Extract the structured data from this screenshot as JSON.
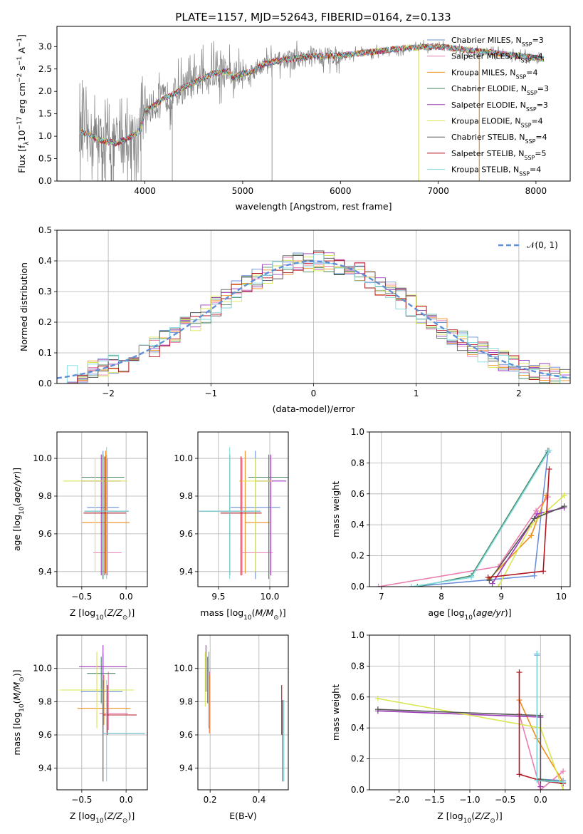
{
  "title": "PLATE=1157, MJD=52643, FIBERID=0164, z=0.133",
  "legend_spectrum": [
    {
      "label": "Chabrier MILES, N_SSP=3",
      "color": "#6a8fd8"
    },
    {
      "label": "Salpeter MILES, N_SSP=4",
      "color": "#e87fb0"
    },
    {
      "label": "Kroupa MILES, N_SSP=4",
      "color": "#ef8e1f"
    },
    {
      "label": "Chabrier ELODIE, N_SSP=3",
      "color": "#4b8a63"
    },
    {
      "label": "Salpeter ELODIE, N_SSP=3",
      "color": "#9b39b8"
    },
    {
      "label": "Kroupa ELODIE, N_SSP=4",
      "color": "#d9e64f"
    },
    {
      "label": "Chabrier STELIB, N_SSP=4",
      "color": "#555555"
    },
    {
      "label": "Salpeter STELIB, N_SSP=5",
      "color": "#b3141e"
    },
    {
      "label": "Kroupa STELIB, N_SSP=4",
      "color": "#7fd9e0"
    }
  ],
  "labels": {
    "spec_x": "wavelength [Angstrom, rest frame]",
    "spec_y": "Flux [f_λ 10^-17 erg cm^-2 s^-1 A^-1]",
    "hist_x": "(data-model)/error",
    "hist_y": "Normed distribution",
    "hist_legend": "𝒩(0, 1)",
    "age_y": "age  [log10(age/yr)]",
    "z_x": "Z [log10(Z/Z⊙)]",
    "mass_x": "mass [log10(M/M⊙)]",
    "mass_y": "mass [log10(M/M⊙)]",
    "ebv_x": "E(B-V)",
    "mw_y": "mass weight",
    "age_x": "age  [log10(age/yr)]"
  },
  "chart_data": [
    {
      "type": "line",
      "panel": "spectrum",
      "xlim": [
        3100,
        8350
      ],
      "ylim": [
        0,
        3.45
      ],
      "x_ticks": [
        4000,
        5000,
        6000,
        7000,
        8000
      ],
      "y_ticks": [
        0.0,
        0.5,
        1.0,
        1.5,
        2.0,
        2.5,
        3.0
      ],
      "y_tick_labels": [
        "0.0",
        "0.5",
        "1.0",
        "1.5",
        "2.0",
        "2.5",
        "3.0"
      ],
      "continuum_x": [
        3330,
        3420,
        3500,
        3600,
        3700,
        3800,
        3900,
        3950,
        4000,
        4100,
        4200,
        4300,
        4400,
        4500,
        4700,
        4860,
        4900,
        5000,
        5100,
        5200,
        5400,
        5600,
        5800,
        6000,
        6200,
        6400,
        6600,
        6800,
        7000,
        7200,
        7400,
        7600,
        7800,
        8000,
        8080
      ],
      "continuum_y": [
        1.1,
        1.05,
        0.95,
        0.88,
        0.85,
        0.92,
        1.05,
        1.15,
        1.55,
        1.7,
        1.85,
        1.95,
        2.1,
        2.2,
        2.4,
        2.45,
        2.3,
        2.4,
        2.45,
        2.6,
        2.7,
        2.75,
        2.8,
        2.8,
        2.85,
        2.9,
        2.95,
        2.98,
        3.0,
        2.95,
        2.9,
        2.85,
        2.8,
        2.75,
        2.72
      ],
      "grid": false
    },
    {
      "type": "histogram",
      "panel": "residuals",
      "xlim": [
        -2.5,
        2.5
      ],
      "ylim": [
        0,
        0.5
      ],
      "x_ticks": [
        -2,
        -1,
        0,
        1,
        2
      ],
      "x_tick_labels": [
        "−2",
        "−1",
        "0",
        "1",
        "2"
      ],
      "y_ticks": [
        0.0,
        0.1,
        0.2,
        0.3,
        0.4,
        0.5
      ],
      "y_tick_labels": [
        "0.0",
        "0.1",
        "0.2",
        "0.3",
        "0.4",
        "0.5"
      ],
      "bin_width": 0.1,
      "bin_start": -2.5,
      "gaussian": {
        "mu": 0,
        "sigma": 1,
        "label": "𝒩(0, 1)"
      },
      "grid": true
    },
    {
      "type": "scatter",
      "panel": "Z vs age",
      "xlim": [
        -0.78,
        0.24
      ],
      "ylim": [
        9.32,
        10.14
      ],
      "x_ticks": [
        -0.5,
        0.0
      ],
      "x_tick_labels": [
        "−0.5",
        "0.0"
      ],
      "y_ticks": [
        9.4,
        9.6,
        9.8,
        10.0
      ],
      "y_tick_labels": [
        "9.4",
        "9.6",
        "9.8",
        "10.0"
      ],
      "points": [
        {
          "x": -0.26,
          "y": 9.74,
          "xerr": [
            0.18,
            0.18
          ],
          "yerr": [
            0.38,
            0.3
          ],
          "color": "#6a8fd8"
        },
        {
          "x": -0.21,
          "y": 9.5,
          "xerr": [
            0.16,
            0.16
          ],
          "yerr": [
            0.12,
            0.5
          ],
          "color": "#e87fb0"
        },
        {
          "x": -0.23,
          "y": 9.66,
          "xerr": [
            0.27,
            0.27
          ],
          "yerr": [
            0.27,
            0.38
          ],
          "color": "#ef8e1f"
        },
        {
          "x": -0.26,
          "y": 9.9,
          "xerr": [
            0.24,
            0.24
          ],
          "yerr": [
            0.54,
            0.12
          ],
          "color": "#4b8a63"
        },
        {
          "x": -0.28,
          "y": 9.88,
          "xerr": [
            0.22,
            0.22
          ],
          "yerr": [
            0.5,
            0.14
          ],
          "color": "#9b39b8"
        },
        {
          "x": -0.35,
          "y": 9.88,
          "xerr": [
            0.36,
            0.36
          ],
          "yerr": [
            0.48,
            0.12
          ],
          "color": "#d9e64f"
        },
        {
          "x": -0.22,
          "y": 9.72,
          "xerr": [
            0.25,
            0.25
          ],
          "yerr": [
            0.34,
            0.3
          ],
          "color": "#555555"
        },
        {
          "x": -0.24,
          "y": 9.71,
          "xerr": [
            0.24,
            0.24
          ],
          "yerr": [
            0.33,
            0.3
          ],
          "color": "#b3141e"
        },
        {
          "x": -0.22,
          "y": 9.72,
          "xerr": [
            0.25,
            0.25
          ],
          "yerr": [
            0.36,
            0.34
          ],
          "color": "#7fd9e0"
        }
      ],
      "grid": true
    },
    {
      "type": "scatter",
      "panel": "mass vs age",
      "xlim": [
        9.3,
        10.18
      ],
      "ylim": [
        9.32,
        10.14
      ],
      "x_ticks": [
        9.5,
        10.0
      ],
      "x_tick_labels": [
        "9.5",
        "10.0"
      ],
      "y_ticks": [
        9.4,
        9.6,
        9.8,
        10.0
      ],
      "y_tick_labels": [
        "9.4",
        "9.6",
        "9.8",
        "10.0"
      ],
      "points": [
        {
          "x": 9.86,
          "y": 9.74,
          "xerr": [
            0.24,
            0.24
          ],
          "yerr": [
            0.38,
            0.3
          ],
          "color": "#6a8fd8"
        },
        {
          "x": 9.73,
          "y": 9.5,
          "xerr": [
            0.0,
            0.3
          ],
          "yerr": [
            0.12,
            0.5
          ],
          "color": "#e87fb0"
        },
        {
          "x": 9.76,
          "y": 9.66,
          "xerr": [
            0.0,
            0.24
          ],
          "yerr": [
            0.27,
            0.38
          ],
          "color": "#ef8e1f"
        },
        {
          "x": 9.99,
          "y": 9.9,
          "xerr": [
            0.2,
            0.2
          ],
          "yerr": [
            0.54,
            0.12
          ],
          "color": "#4b8a63"
        },
        {
          "x": 10.01,
          "y": 9.88,
          "xerr": [
            0.15,
            0.15
          ],
          "yerr": [
            0.5,
            0.14
          ],
          "color": "#9b39b8"
        },
        {
          "x": 9.86,
          "y": 9.88,
          "xerr": [
            0.16,
            0.16
          ],
          "yerr": [
            0.48,
            0.12
          ],
          "color": "#d9e64f"
        },
        {
          "x": 9.61,
          "y": 9.72,
          "xerr": [
            0.3,
            0.3
          ],
          "yerr": [
            0.34,
            0.3
          ],
          "color": "#555555"
        },
        {
          "x": 9.72,
          "y": 9.71,
          "xerr": [
            0.2,
            0.2
          ],
          "yerr": [
            0.33,
            0.3
          ],
          "color": "#b3141e"
        },
        {
          "x": 9.61,
          "y": 9.72,
          "xerr": [
            0.3,
            0.3
          ],
          "yerr": [
            0.36,
            0.34
          ],
          "color": "#7fd9e0"
        }
      ],
      "grid": true
    },
    {
      "type": "line",
      "panel": "age vs mass weight",
      "xlim": [
        6.8,
        10.15
      ],
      "ylim": [
        0,
        1.0
      ],
      "x_ticks": [
        7,
        8,
        9,
        10
      ],
      "y_ticks": [
        0.0,
        0.2,
        0.4,
        0.6,
        0.8,
        1.0
      ],
      "y_tick_labels": [
        "0.0",
        "0.2",
        "0.4",
        "0.6",
        "0.8",
        "1.0"
      ],
      "series": [
        {
          "color": "#6a8fd8",
          "x": [
            7.5,
            9.55,
            9.78
          ],
          "y": [
            0.0,
            0.07,
            0.87
          ]
        },
        {
          "color": "#e87fb0",
          "x": [
            6.95,
            8.95,
            9.58,
            9.78
          ],
          "y": [
            0.0,
            0.13,
            0.49,
            0.58
          ]
        },
        {
          "color": "#ef8e1f",
          "x": [
            8.8,
            9.5,
            9.75
          ],
          "y": [
            0.05,
            0.33,
            0.59
          ]
        },
        {
          "color": "#4b8a63",
          "x": [
            7.6,
            8.5,
            9.78
          ],
          "y": [
            0.0,
            0.07,
            0.88
          ]
        },
        {
          "color": "#9b39b8",
          "x": [
            8.85,
            9.6,
            10.05
          ],
          "y": [
            0.02,
            0.47,
            0.51
          ]
        },
        {
          "color": "#d9e64f",
          "x": [
            8.95,
            9.5,
            10.05
          ],
          "y": [
            0.0,
            0.4,
            0.59
          ]
        },
        {
          "color": "#555555",
          "x": [
            8.8,
            9.55,
            10.05
          ],
          "y": [
            0.04,
            0.44,
            0.52
          ]
        },
        {
          "color": "#b3141e",
          "x": [
            8.78,
            9.7,
            9.8
          ],
          "y": [
            0.06,
            0.1,
            0.76
          ]
        },
        {
          "color": "#7fd9e0",
          "x": [
            7.5,
            8.5,
            9.8
          ],
          "y": [
            0.0,
            0.06,
            0.88
          ]
        }
      ],
      "grid": true
    },
    {
      "type": "scatter",
      "panel": "Z vs mass",
      "xlim": [
        -0.78,
        0.24
      ],
      "ylim": [
        9.27,
        10.2
      ],
      "x_ticks": [
        -0.5,
        0.0
      ],
      "x_tick_labels": [
        "−0.5",
        "0.0"
      ],
      "y_ticks": [
        9.4,
        9.6,
        9.8,
        10.0
      ],
      "y_tick_labels": [
        "9.4",
        "9.6",
        "9.8",
        "10.0"
      ],
      "points": [
        {
          "x": -0.26,
          "y": 9.86,
          "xerr": [
            0.25,
            0.22
          ],
          "yerr": [
            0.25,
            0.23
          ],
          "color": "#6a8fd8"
        },
        {
          "x": -0.2,
          "y": 9.73,
          "xerr": [
            0.1,
            0.22
          ],
          "yerr": [
            0.1,
            0.25
          ],
          "color": "#e87fb0"
        },
        {
          "x": -0.25,
          "y": 9.76,
          "xerr": [
            0.3,
            0.3
          ],
          "yerr": [
            0.1,
            0.2
          ],
          "color": "#ef8e1f"
        },
        {
          "x": -0.28,
          "y": 9.97,
          "xerr": [
            0.16,
            0.16
          ],
          "yerr": [
            0.18,
            0.1
          ],
          "color": "#4b8a63"
        },
        {
          "x": -0.26,
          "y": 10.01,
          "xerr": [
            0.27,
            0.27
          ],
          "yerr": [
            0.15,
            0.13
          ],
          "color": "#9b39b8"
        },
        {
          "x": -0.33,
          "y": 9.87,
          "xerr": [
            0.42,
            0.42
          ],
          "yerr": [
            0.23,
            0.23
          ],
          "color": "#d9e64f"
        },
        {
          "x": -0.26,
          "y": 9.61,
          "xerr": [
            0.0,
            0.47
          ],
          "yerr": [
            0.29,
            0.32
          ],
          "color": "#555555"
        },
        {
          "x": -0.21,
          "y": 9.72,
          "xerr": [
            0.05,
            0.33
          ],
          "yerr": [
            0.12,
            0.18
          ],
          "color": "#b3141e"
        },
        {
          "x": -0.22,
          "y": 9.61,
          "xerr": [
            0.04,
            0.43
          ],
          "yerr": [
            0.29,
            0.32
          ],
          "color": "#7fd9e0"
        }
      ],
      "grid": true
    },
    {
      "type": "scatter",
      "panel": "E(B-V) vs mass",
      "xlim": [
        0.15,
        0.52
      ],
      "ylim": [
        9.27,
        10.2
      ],
      "x_ticks": [
        0.2,
        0.4
      ],
      "x_tick_labels": [
        "0.2",
        "0.4"
      ],
      "y_ticks": [
        9.4,
        9.6,
        9.8,
        10.0
      ],
      "y_tick_labels": [
        "9.4",
        "9.6",
        "9.8",
        "10.0"
      ],
      "points": [
        {
          "x": 0.195,
          "y": 9.87,
          "yerr": [
            0.23,
            0.23
          ],
          "color": "#6a8fd8"
        },
        {
          "x": 0.198,
          "y": 9.73,
          "yerr": [
            0.12,
            0.25
          ],
          "color": "#e87fb0"
        },
        {
          "x": 0.197,
          "y": 9.76,
          "yerr": [
            0.15,
            0.2
          ],
          "color": "#ef8e1f"
        },
        {
          "x": 0.19,
          "y": 9.97,
          "yerr": [
            0.18,
            0.1
          ],
          "color": "#4b8a63"
        },
        {
          "x": 0.183,
          "y": 10.01,
          "yerr": [
            0.15,
            0.13
          ],
          "color": "#9b39b8"
        },
        {
          "x": 0.18,
          "y": 9.87,
          "yerr": [
            0.1,
            0.23
          ],
          "color": "#d9e64f"
        },
        {
          "x": 0.497,
          "y": 9.61,
          "yerr": [
            0.29,
            0.2
          ],
          "color": "#555555"
        },
        {
          "x": 0.493,
          "y": 9.72,
          "yerr": [
            0.12,
            0.18
          ],
          "color": "#b3141e"
        },
        {
          "x": 0.502,
          "y": 9.61,
          "yerr": [
            0.29,
            0.2
          ],
          "color": "#7fd9e0"
        }
      ],
      "grid": true
    },
    {
      "type": "line",
      "panel": "Z vs mass weight",
      "xlim": [
        -2.42,
        0.42
      ],
      "ylim": [
        0,
        1.0
      ],
      "x_ticks": [
        -2.0,
        -1.5,
        -1.0,
        -0.5,
        0.0
      ],
      "x_tick_labels": [
        "−2.0",
        "−1.5",
        "−1.0",
        "−0.5",
        "0.0"
      ],
      "y_ticks": [
        0.0,
        0.2,
        0.4,
        0.6,
        0.8,
        1.0
      ],
      "y_tick_labels": [
        "0.0",
        "0.2",
        "0.4",
        "0.6",
        "0.8",
        "1.0"
      ],
      "series": [
        {
          "color": "#6a8fd8",
          "x": [
            -0.05,
            -0.05,
            0.32
          ],
          "y": [
            0.87,
            0.07,
            0.06
          ]
        },
        {
          "color": "#e87fb0",
          "x": [
            -0.3,
            0.0,
            0.32
          ],
          "y": [
            0.49,
            0.0,
            0.12
          ]
        },
        {
          "color": "#ef8e1f",
          "x": [
            -0.3,
            -0.05,
            0.32
          ],
          "y": [
            0.58,
            0.33,
            0.05
          ]
        },
        {
          "color": "#4b8a63",
          "x": [
            -0.05,
            -0.05,
            0.32
          ],
          "y": [
            0.88,
            0.07,
            0.05
          ]
        },
        {
          "color": "#9b39b8",
          "x": [
            -2.3,
            0.0,
            0.0
          ],
          "y": [
            0.51,
            0.47,
            0.02
          ]
        },
        {
          "color": "#d9e64f",
          "x": [
            -2.3,
            0.0,
            0.32
          ],
          "y": [
            0.59,
            0.4,
            0.0
          ]
        },
        {
          "color": "#555555",
          "x": [
            -2.3,
            0.0,
            0.0
          ],
          "y": [
            0.52,
            0.48,
            0.06
          ]
        },
        {
          "color": "#b3141e",
          "x": [
            -0.3,
            -0.3,
            0.0,
            0.32
          ],
          "y": [
            0.76,
            0.1,
            0.06,
            0.04
          ]
        },
        {
          "color": "#7fd9e0",
          "x": [
            -0.05,
            -0.05,
            0.32
          ],
          "y": [
            0.88,
            0.06,
            0.05
          ]
        }
      ],
      "grid": true
    }
  ]
}
